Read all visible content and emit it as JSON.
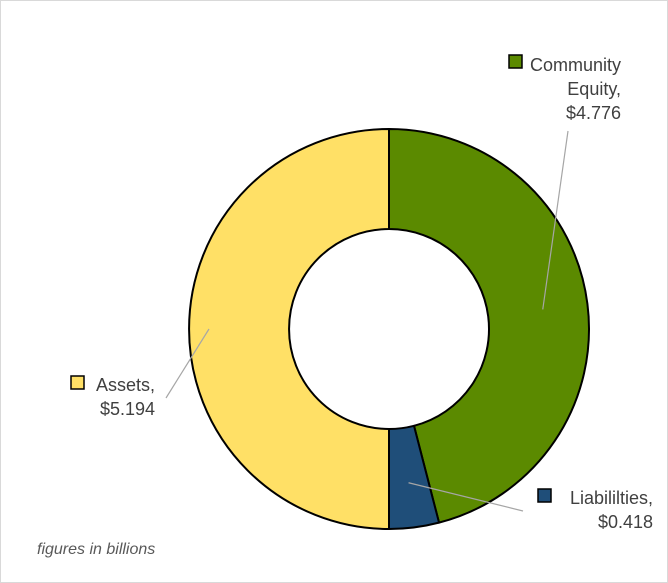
{
  "chart_data": {
    "type": "pie",
    "subtype": "donut",
    "title": "",
    "start": "top",
    "direction": "clockwise",
    "series": [
      {
        "name": "Community Equity",
        "value": 4.776,
        "value_label": "$4.776",
        "label_lines": [
          "Community",
          "Equity,",
          "$4.776"
        ],
        "color": "#5b8a00"
      },
      {
        "name": "Liabililties",
        "value": 0.418,
        "value_label": "$0.418",
        "label_lines": [
          "Liabililties,",
          "$0.418"
        ],
        "color": "#1f4e79"
      },
      {
        "name": "Assets",
        "value": 5.194,
        "value_label": "$5.194",
        "label_lines": [
          "Assets,",
          "$5.194"
        ],
        "color": "#ffe066"
      }
    ],
    "footnote": "figures in billions"
  }
}
